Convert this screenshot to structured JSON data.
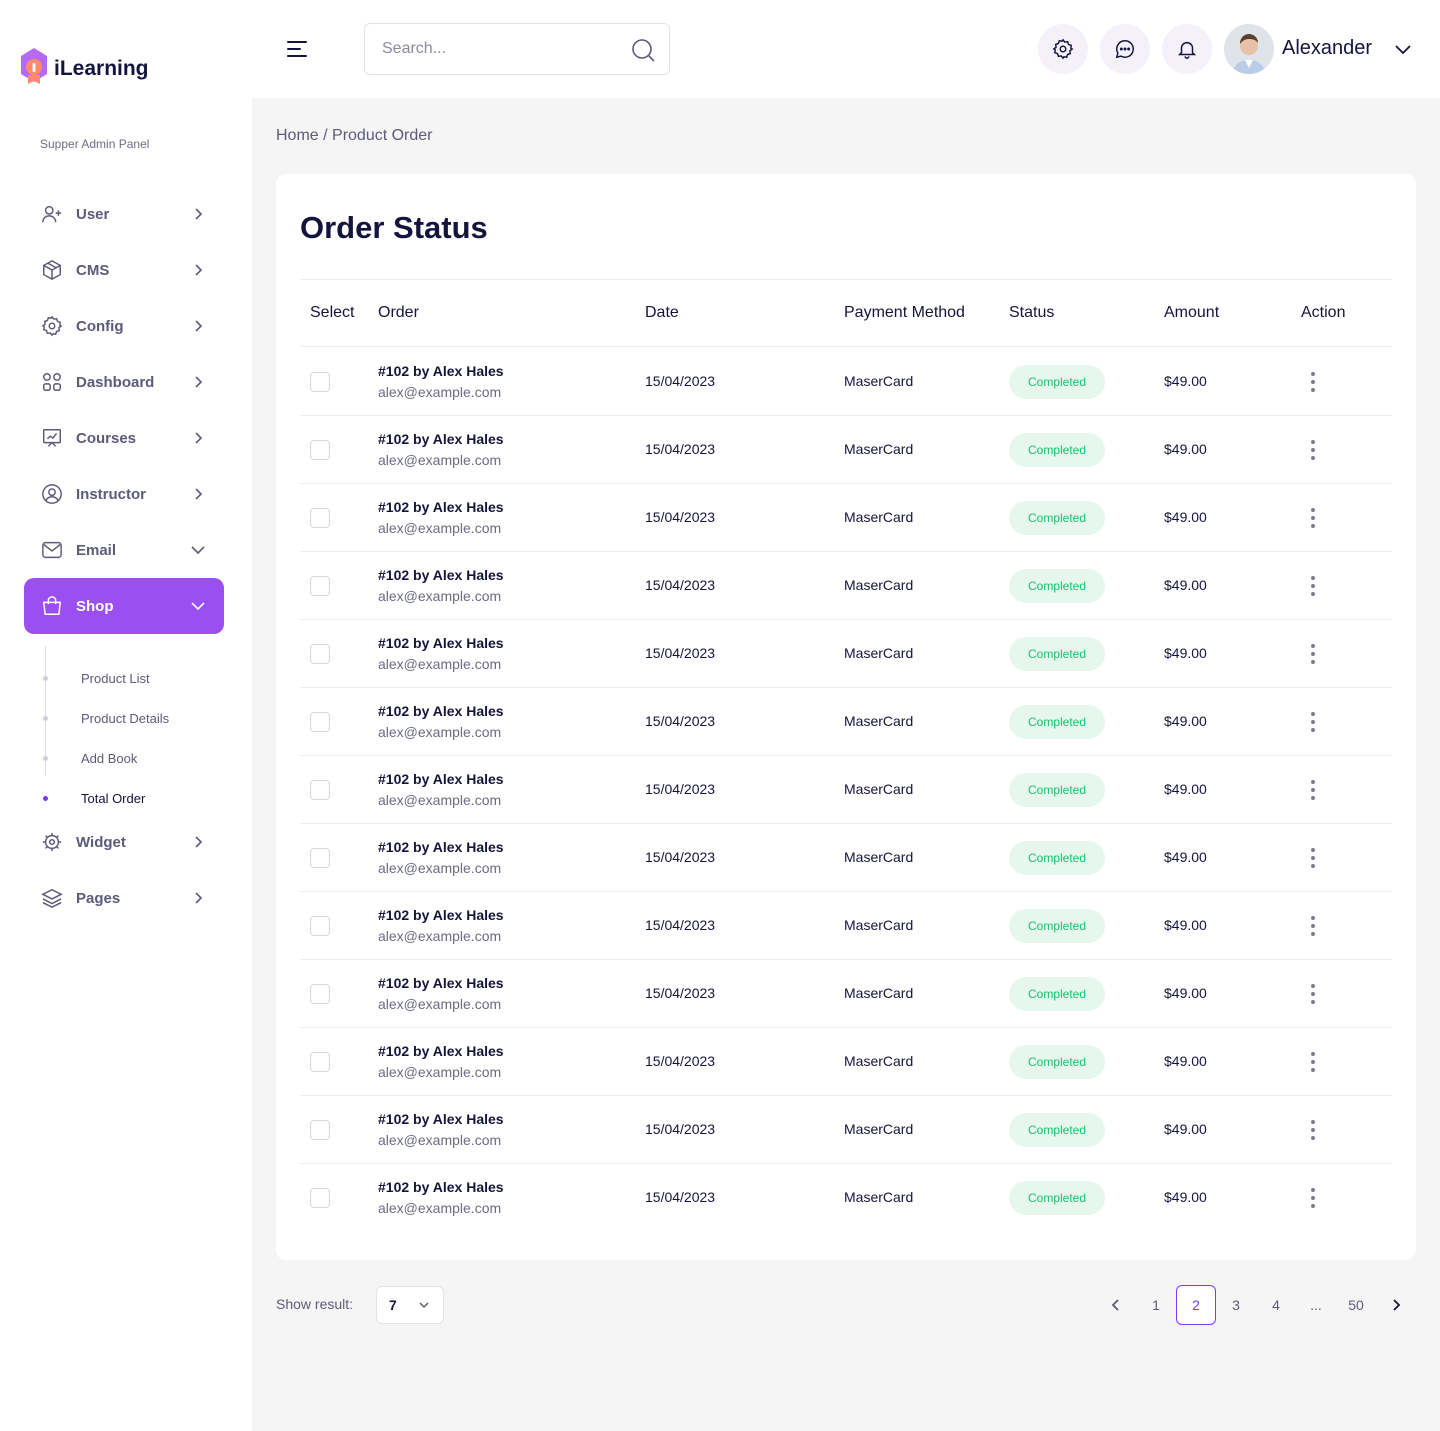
{
  "app": {
    "brand": "iLearning",
    "panel_label": "Supper Admin Panel"
  },
  "sidebar": {
    "items": [
      {
        "label": "User",
        "icon": "user-add-icon",
        "expanded": false
      },
      {
        "label": "CMS",
        "icon": "cube-icon",
        "expanded": false
      },
      {
        "label": "Config",
        "icon": "gear-icon",
        "expanded": false
      },
      {
        "label": "Dashboard",
        "icon": "grid-icon",
        "expanded": false
      },
      {
        "label": "Courses",
        "icon": "chart-board-icon",
        "expanded": false
      },
      {
        "label": "Instructor",
        "icon": "user-circle-icon",
        "expanded": false
      },
      {
        "label": "Email",
        "icon": "mail-icon",
        "expanded": true
      },
      {
        "label": "Shop",
        "icon": "shopping-bag-icon",
        "expanded": true,
        "active": true
      },
      {
        "label": "Widget",
        "icon": "widget-gear-icon",
        "expanded": false
      },
      {
        "label": "Pages",
        "icon": "layers-icon",
        "expanded": false
      }
    ],
    "shop_subitems": [
      {
        "label": "Product List",
        "current": false
      },
      {
        "label": "Product Details",
        "current": false
      },
      {
        "label": "Add Book",
        "current": false
      },
      {
        "label": "Total Order",
        "current": true
      }
    ]
  },
  "header": {
    "search_placeholder": "Search...",
    "username": "Alexander",
    "icons": [
      "menu-icon",
      "search-icon",
      "gear-icon",
      "chat-icon",
      "bell-icon",
      "chevron-down-icon"
    ]
  },
  "breadcrumb": "Home / Product Order",
  "card": {
    "title": "Order Status",
    "columns": [
      "Select",
      "Order",
      "Date",
      "Payment Method",
      "Status",
      "Amount",
      "Action"
    ],
    "rows": [
      {
        "order": "#102 by Alex Hales",
        "email": "alex@example.com",
        "date": "15/04/2023",
        "payment": "MaserCard",
        "status": "Completed",
        "amount": "$49.00"
      },
      {
        "order": "#102 by Alex Hales",
        "email": "alex@example.com",
        "date": "15/04/2023",
        "payment": "MaserCard",
        "status": "Completed",
        "amount": "$49.00"
      },
      {
        "order": "#102 by Alex Hales",
        "email": "alex@example.com",
        "date": "15/04/2023",
        "payment": "MaserCard",
        "status": "Completed",
        "amount": "$49.00"
      },
      {
        "order": "#102 by Alex Hales",
        "email": "alex@example.com",
        "date": "15/04/2023",
        "payment": "MaserCard",
        "status": "Completed",
        "amount": "$49.00"
      },
      {
        "order": "#102 by Alex Hales",
        "email": "alex@example.com",
        "date": "15/04/2023",
        "payment": "MaserCard",
        "status": "Completed",
        "amount": "$49.00"
      },
      {
        "order": "#102 by Alex Hales",
        "email": "alex@example.com",
        "date": "15/04/2023",
        "payment": "MaserCard",
        "status": "Completed",
        "amount": "$49.00"
      },
      {
        "order": "#102 by Alex Hales",
        "email": "alex@example.com",
        "date": "15/04/2023",
        "payment": "MaserCard",
        "status": "Completed",
        "amount": "$49.00"
      },
      {
        "order": "#102 by Alex Hales",
        "email": "alex@example.com",
        "date": "15/04/2023",
        "payment": "MaserCard",
        "status": "Completed",
        "amount": "$49.00"
      },
      {
        "order": "#102 by Alex Hales",
        "email": "alex@example.com",
        "date": "15/04/2023",
        "payment": "MaserCard",
        "status": "Completed",
        "amount": "$49.00"
      },
      {
        "order": "#102 by Alex Hales",
        "email": "alex@example.com",
        "date": "15/04/2023",
        "payment": "MaserCard",
        "status": "Completed",
        "amount": "$49.00"
      },
      {
        "order": "#102 by Alex Hales",
        "email": "alex@example.com",
        "date": "15/04/2023",
        "payment": "MaserCard",
        "status": "Completed",
        "amount": "$49.00"
      },
      {
        "order": "#102 by Alex Hales",
        "email": "alex@example.com",
        "date": "15/04/2023",
        "payment": "MaserCard",
        "status": "Completed",
        "amount": "$49.00"
      },
      {
        "order": "#102 by Alex Hales",
        "email": "alex@example.com",
        "date": "15/04/2023",
        "payment": "MaserCard",
        "status": "Completed",
        "amount": "$49.00"
      }
    ]
  },
  "footer": {
    "show_label": "Show result:",
    "show_value": "7",
    "pages": [
      "1",
      "2",
      "3",
      "4",
      "...",
      "50"
    ],
    "current_page": "2"
  },
  "colors": {
    "accent": "#9b4ff0",
    "status_bg": "#e6f8ee",
    "status_text": "#1bbf6a",
    "text_dark": "#14143c"
  }
}
